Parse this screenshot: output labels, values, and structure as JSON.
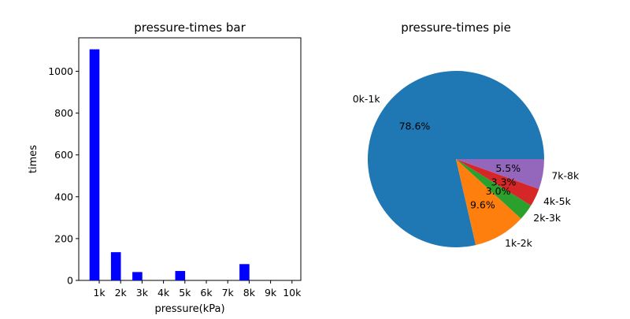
{
  "chart_data": [
    {
      "type": "bar",
      "title": "pressure-times bar",
      "xlabel": "pressure(kPa)",
      "ylabel": "times",
      "categories": [
        "1k",
        "2k",
        "3k",
        "4k",
        "5k",
        "6k",
        "7k",
        "8k",
        "9k",
        "10k"
      ],
      "values": [
        1105,
        135,
        40,
        0,
        45,
        0,
        0,
        78,
        0,
        0
      ],
      "ylim": [
        0,
        1160
      ],
      "yticks": [
        0,
        200,
        400,
        600,
        800,
        1000
      ],
      "bar_color": "#0000ff",
      "grid": false
    },
    {
      "type": "pie",
      "title": "pressure-times pie",
      "labels": [
        "0k-1k",
        "1k-2k",
        "2k-3k",
        "4k-5k",
        "7k-8k"
      ],
      "values": [
        78.6,
        9.6,
        3.0,
        3.3,
        5.5
      ],
      "pct_labels": [
        "78.6%",
        "9.6%",
        "3.0%",
        "3.3%",
        "5.5%"
      ],
      "colors": [
        "#1f77b4",
        "#ff7f0e",
        "#2ca02c",
        "#d62728",
        "#9467bd"
      ]
    }
  ]
}
